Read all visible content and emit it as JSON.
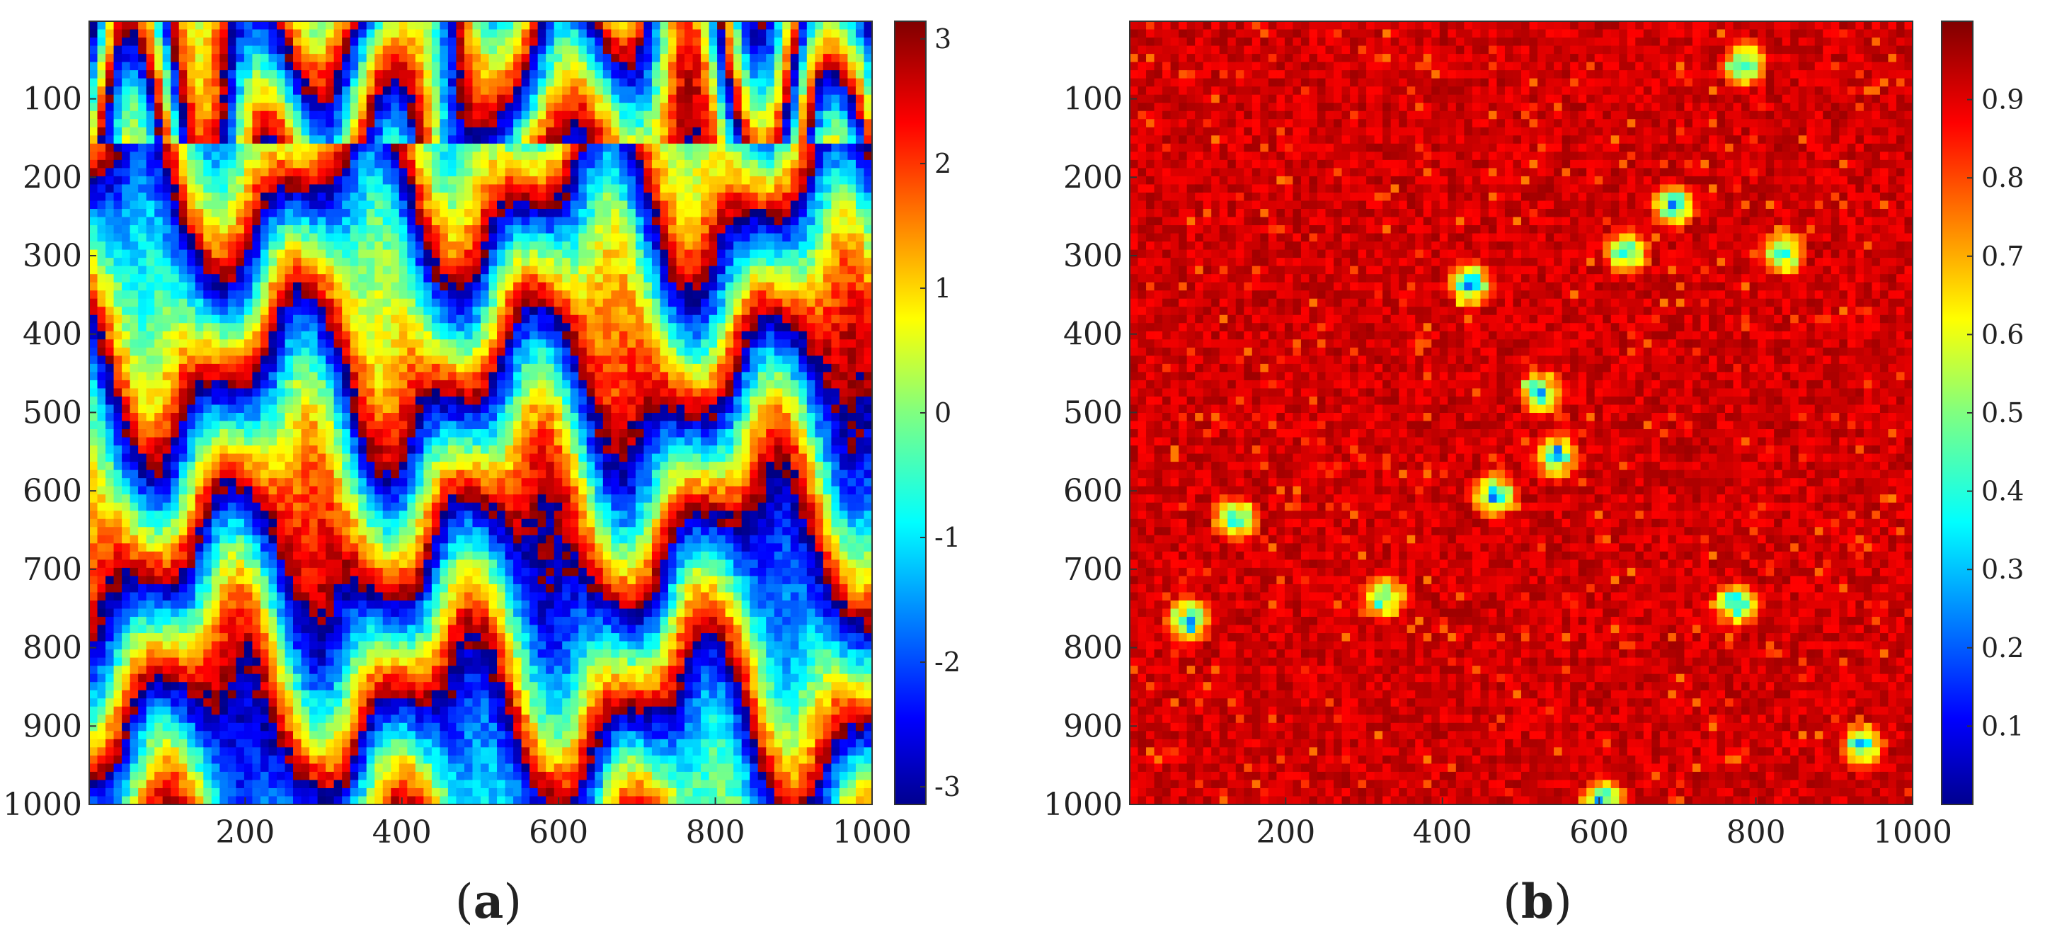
{
  "chart_data": [
    {
      "type": "heatmap",
      "panel_label": "a",
      "grid_size": [
        1000,
        1000
      ],
      "xlim": [
        1,
        1000
      ],
      "ylim": [
        1,
        1000
      ],
      "y_reversed": true,
      "xticks": [
        200,
        400,
        600,
        800,
        1000
      ],
      "yticks": [
        100,
        200,
        300,
        400,
        500,
        600,
        700,
        800,
        900,
        1000
      ],
      "colormap": "jet",
      "color_range": [
        -3.14159,
        3.14159
      ],
      "colorbar_ticks": [
        3,
        2,
        1,
        0,
        -1,
        -2,
        -3
      ],
      "pattern": "wrapped-phase fringes"
    },
    {
      "type": "heatmap",
      "panel_label": "b",
      "grid_size": [
        1000,
        1000
      ],
      "xlim": [
        1,
        1000
      ],
      "ylim": [
        1,
        1000
      ],
      "y_reversed": true,
      "xticks": [
        200,
        400,
        600,
        800,
        1000
      ],
      "yticks": [
        100,
        200,
        300,
        400,
        500,
        600,
        700,
        800,
        900,
        1000
      ],
      "colormap": "jet",
      "color_range": [
        0,
        1
      ],
      "colorbar_ticks": [
        0.9,
        0.8,
        0.7,
        0.6,
        0.5,
        0.4,
        0.3,
        0.2,
        0.1
      ],
      "pattern": "coherence map, mostly high with low-value patches"
    }
  ]
}
